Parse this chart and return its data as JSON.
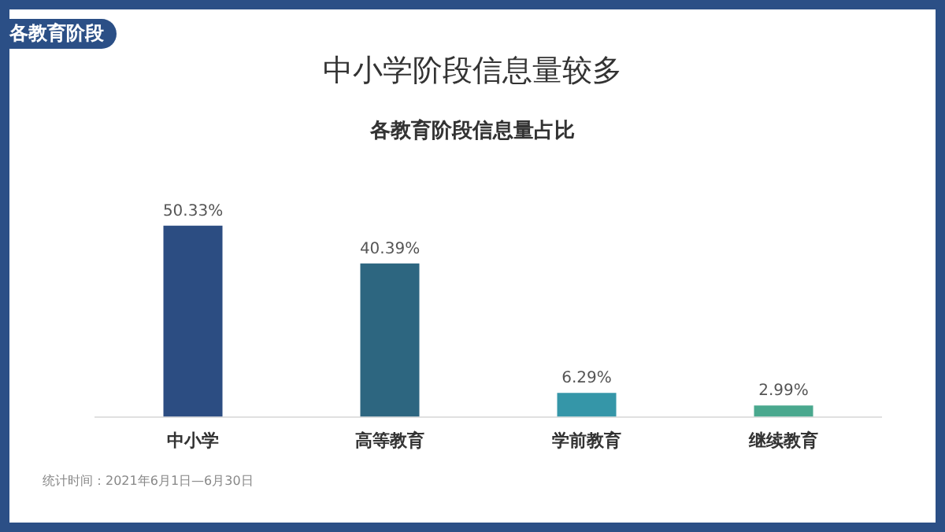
{
  "chart_data": {
    "type": "bar",
    "title": "中小学阶段信息量较多",
    "subtitle": "各教育阶段信息量占比",
    "categories": [
      "中小学",
      "高等教育",
      "学前教育",
      "继续教育"
    ],
    "values": [
      50.33,
      40.39,
      6.29,
      2.99
    ],
    "colors": [
      "#2c4d82",
      "#2d6680",
      "#3596a8",
      "#4aa88e"
    ],
    "value_labels": [
      "50.33%",
      "40.39%",
      "6.29%",
      "2.99%"
    ],
    "annotations": [
      "各教育阶段",
      "统计时间：2021年6月1日—6月30日"
    ],
    "grid": false,
    "legend": false
  }
}
